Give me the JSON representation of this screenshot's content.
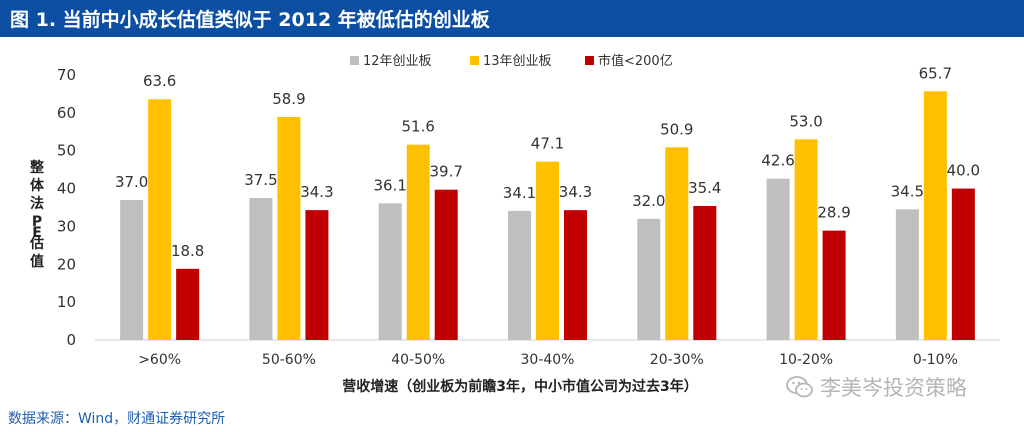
{
  "header": {
    "title": "图 1. 当前中小成长估值类似于 2012 年被低估的创业板"
  },
  "source": "数据来源：Wind，财通证券研究所",
  "watermark": "李美岑投资策略",
  "chart_data": {
    "type": "bar",
    "categories": [
      ">60%",
      "50-60%",
      "40-50%",
      "30-40%",
      "20-30%",
      "10-20%",
      "0-10%"
    ],
    "series": [
      {
        "name": "12年创业板",
        "color": "#bfbfbf",
        "values": [
          37.0,
          37.5,
          36.1,
          34.1,
          32.0,
          42.6,
          34.5
        ]
      },
      {
        "name": "13年创业板",
        "color": "#ffc000",
        "values": [
          63.6,
          58.9,
          51.6,
          47.1,
          50.9,
          53.0,
          65.7
        ]
      },
      {
        "name": "市值<200亿",
        "color": "#c00000",
        "values": [
          18.8,
          34.3,
          39.7,
          34.3,
          35.4,
          28.9,
          40.0
        ]
      }
    ],
    "xlabel": "营收增速（创业板为前瞻3年，中小市值公司为过去3年）",
    "ylabel": "整体法PE估值",
    "ylim": [
      0,
      70
    ],
    "yticks": [
      0,
      10,
      20,
      30,
      40,
      50,
      60,
      70
    ],
    "legend": "top-center",
    "grid": false
  }
}
